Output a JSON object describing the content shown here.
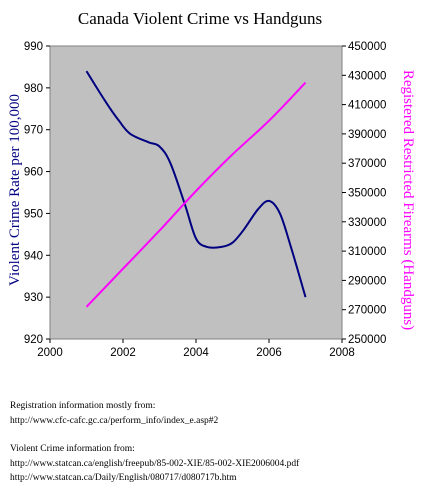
{
  "chart_data": {
    "type": "line",
    "title": "Canada Violent Crime vs Handguns",
    "xlabel": "",
    "ylabel": "Violent Crime Rate  per 100,000",
    "y2label": "Registered Restricted Firearms (Handguns)",
    "xlim": [
      2000,
      2008
    ],
    "ylim": [
      920,
      990
    ],
    "y2lim": [
      250000,
      450000
    ],
    "x_ticks": [
      "2000",
      "2002",
      "2004",
      "2006",
      "2008"
    ],
    "y_ticks": [
      "920",
      "930",
      "940",
      "950",
      "960",
      "970",
      "980",
      "990"
    ],
    "y2_ticks": [
      "250000",
      "270000",
      "290000",
      "310000",
      "330000",
      "350000",
      "370000",
      "390000",
      "410000",
      "430000",
      "450000"
    ],
    "plot_background": "#c0c0c0",
    "grid": false,
    "legend": "none",
    "series": [
      {
        "axis": "left",
        "color": "#000080",
        "x": [
          2001.0,
          2001.5,
          2001.9,
          2002.2,
          2002.7,
          2003.0,
          2003.3,
          2003.7,
          2004.0,
          2004.3,
          2004.7,
          2005.0,
          2005.3,
          2005.7,
          2006.0,
          2006.3,
          2006.6,
          2007.0
        ],
        "y": [
          984,
          977,
          972,
          969,
          967,
          966,
          962,
          952,
          944,
          942,
          942,
          943,
          946,
          951,
          953,
          950,
          942,
          930
        ]
      },
      {
        "axis": "right",
        "color": "#ff00ff",
        "x": [
          2001,
          2002,
          2003,
          2004,
          2005,
          2006,
          2007
        ],
        "y": [
          272000,
          298000,
          324000,
          351000,
          376000,
          399000,
          425000
        ]
      }
    ]
  },
  "notes": {
    "registration_label": "Registration information mostly from:",
    "registration_url": "http://www.cfc-cafc.gc.ca/perform_info/index_e.asp#2",
    "crime_label": "Violent Crime information from:",
    "crime_url_1": "http://www.statcan.ca/english/freepub/85-002-XIE/85-002-XIE2006004.pdf",
    "crime_url_2": "http://www.statcan.ca/Daily/English/080717/d080717b.htm"
  }
}
